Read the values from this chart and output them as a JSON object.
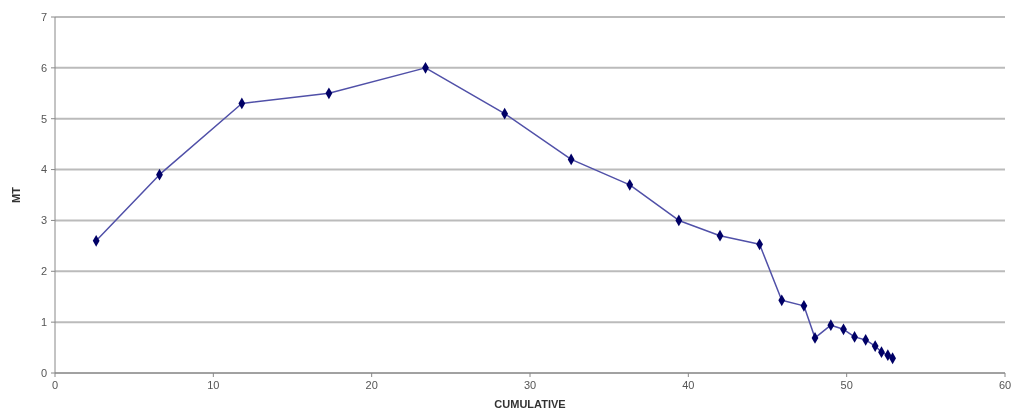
{
  "chart_data": {
    "type": "line",
    "xlabel": "CUMULATIVE",
    "ylabel": "MT",
    "xlim": [
      0,
      60
    ],
    "xticks": [
      0,
      10,
      20,
      30,
      40,
      50,
      60
    ],
    "ylim": [
      0,
      7
    ],
    "yticks": [
      0,
      1,
      2,
      3,
      4,
      5,
      6,
      7
    ],
    "grid": "y",
    "marker": "diamond",
    "line_style": "solid",
    "x": [
      2.6,
      6.6,
      11.8,
      17.3,
      23.4,
      28.4,
      32.6,
      36.3,
      39.4,
      42.0,
      44.5,
      45.9,
      47.3,
      48.0,
      49.0,
      49.8,
      50.5,
      51.2,
      51.8,
      52.2,
      52.6,
      52.9
    ],
    "series": [
      {
        "color": "#5050a8",
        "values": [
          2.6,
          3.9,
          5.3,
          5.5,
          6.0,
          5.1,
          4.2,
          3.7,
          3.0,
          2.7,
          2.53,
          1.43,
          1.32,
          0.69,
          0.94,
          0.86,
          0.71,
          0.65,
          0.53,
          0.41,
          0.35,
          0.29
        ]
      }
    ]
  }
}
